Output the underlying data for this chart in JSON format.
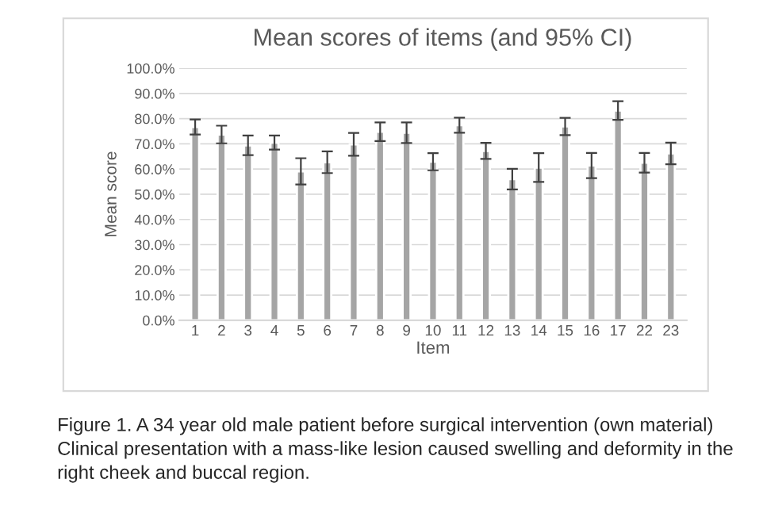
{
  "chart_data": {
    "type": "bar",
    "title": "Mean scores of items (and 95% CI)",
    "xlabel": "Item",
    "ylabel": "Mean score",
    "categories": [
      "1",
      "2",
      "3",
      "4",
      "5",
      "6",
      "7",
      "8",
      "9",
      "10",
      "11",
      "12",
      "13",
      "14",
      "15",
      "16",
      "17",
      "22",
      "23"
    ],
    "values": [
      76.7,
      73.7,
      69.4,
      70.5,
      59.1,
      62.7,
      69.8,
      74.8,
      74.4,
      62.9,
      77.4,
      67.2,
      56.0,
      60.6,
      76.9,
      61.4,
      83.2,
      62.5,
      66.2
    ],
    "errors": [
      3.0,
      3.5,
      3.9,
      2.8,
      5.2,
      4.3,
      4.5,
      3.7,
      4.1,
      3.4,
      3.0,
      3.2,
      4.1,
      5.7,
      3.4,
      5.0,
      3.7,
      3.9,
      4.3
    ],
    "color": "#a5a5a5",
    "ylim": [
      0,
      100
    ],
    "yticks": [
      {
        "value": 0,
        "label": "0.0%"
      },
      {
        "value": 10,
        "label": "10.0%"
      },
      {
        "value": 20,
        "label": "20.0%"
      },
      {
        "value": 30,
        "label": "30.0%"
      },
      {
        "value": 40,
        "label": "40.0%"
      },
      {
        "value": 50,
        "label": "50.0%"
      },
      {
        "value": 60,
        "label": "60.0%"
      },
      {
        "value": 70,
        "label": "70.0%"
      },
      {
        "value": 80,
        "label": "80.0%"
      },
      {
        "value": 90,
        "label": "90.0%"
      },
      {
        "value": 100,
        "label": "100.0%"
      }
    ],
    "grid": "y",
    "annotations": [
      "Figure 1. A 34 year old male patient before surgical intervention (own material) Clinical presentation with a mass-like lesion caused swelling and deformity in the right cheek and buccal region."
    ]
  }
}
